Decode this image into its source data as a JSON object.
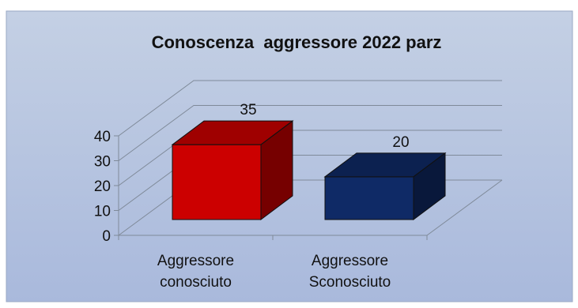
{
  "chart_data": {
    "type": "bar",
    "title": "Conoscenza  aggressore 2022 parz",
    "categories": [
      [
        "Aggressore",
        "conosciuto"
      ],
      [
        "Aggressore",
        "Sconosciuto"
      ]
    ],
    "values": [
      35,
      20
    ],
    "data_labels": [
      "35",
      "20"
    ],
    "bar_colors": [
      "#cc0000",
      "#0f2a66"
    ],
    "ylim": [
      0,
      40
    ],
    "yticks": [
      0,
      10,
      20,
      30,
      40
    ],
    "gridlines": true,
    "legend": "none",
    "style": "3d-clustered-column",
    "background": [
      "#c4d0e4",
      "#a9b9dc"
    ]
  }
}
